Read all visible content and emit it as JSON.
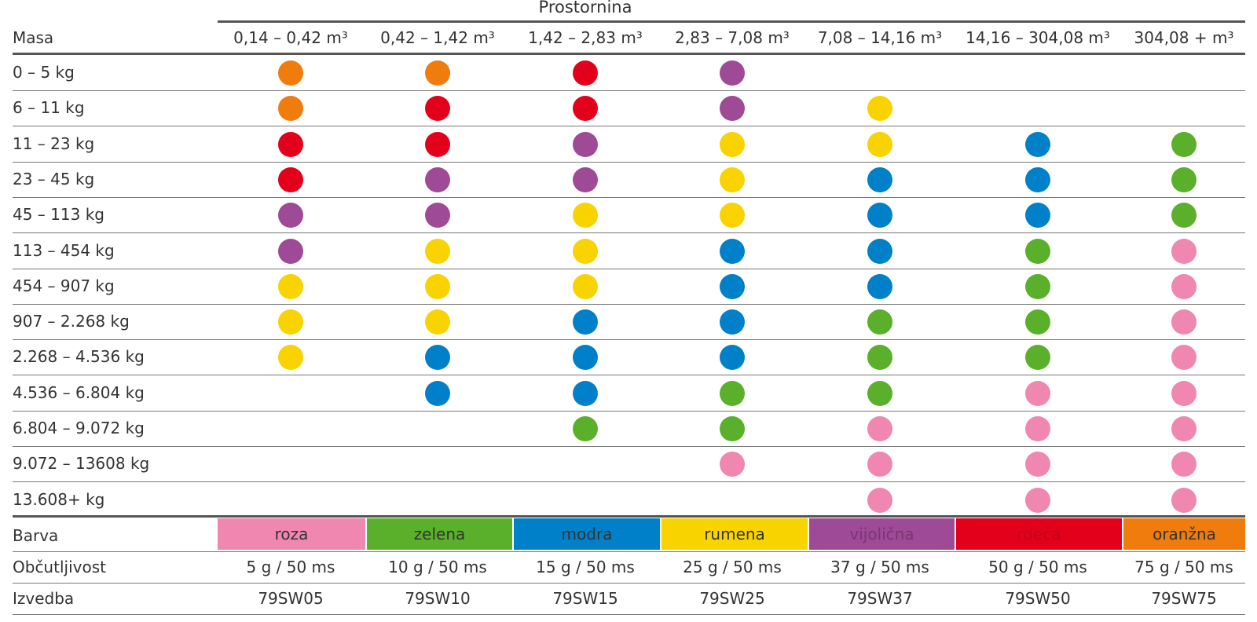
{
  "header": {
    "group_title": "Prostornina",
    "row_header": "Masa"
  },
  "columns": [
    "0,14 – 0,42 m³",
    "0,42 – 1,42 m³",
    "1,42 – 2,83 m³",
    "2,83 – 7,08 m³",
    "7,08 – 14,16 m³",
    "14,16 – 304,08 m³",
    "304,08 + m³"
  ],
  "rows": [
    {
      "label": "0 – 5 kg",
      "cells": [
        "O",
        "O",
        "R",
        "V",
        "",
        "",
        ""
      ]
    },
    {
      "label": "6 – 11 kg",
      "cells": [
        "O",
        "R",
        "R",
        "V",
        "Y",
        "",
        ""
      ]
    },
    {
      "label": "11 – 23 kg",
      "cells": [
        "R",
        "R",
        "V",
        "Y",
        "Y",
        "B",
        "G"
      ]
    },
    {
      "label": "23 – 45 kg",
      "cells": [
        "R",
        "V",
        "V",
        "Y",
        "B",
        "B",
        "G"
      ]
    },
    {
      "label": "45 – 113 kg",
      "cells": [
        "V",
        "V",
        "Y",
        "Y",
        "B",
        "B",
        "G"
      ]
    },
    {
      "label": "113 – 454 kg",
      "cells": [
        "V",
        "Y",
        "Y",
        "B",
        "B",
        "G",
        "P"
      ]
    },
    {
      "label": "454 – 907 kg",
      "cells": [
        "Y",
        "Y",
        "Y",
        "B",
        "B",
        "G",
        "P"
      ]
    },
    {
      "label": "907 – 2.268 kg",
      "cells": [
        "Y",
        "Y",
        "B",
        "B",
        "G",
        "G",
        "P"
      ]
    },
    {
      "label": "2.268 – 4.536 kg",
      "cells": [
        "Y",
        "B",
        "B",
        "B",
        "G",
        "G",
        "P"
      ]
    },
    {
      "label": "4.536 – 6.804 kg",
      "cells": [
        "",
        "B",
        "B",
        "G",
        "G",
        "P",
        "P"
      ]
    },
    {
      "label": "6.804 – 9.072 kg",
      "cells": [
        "",
        "",
        "G",
        "G",
        "P",
        "P",
        "P"
      ]
    },
    {
      "label": "9.072 – 13608 kg",
      "cells": [
        "",
        "",
        "",
        "P",
        "P",
        "P",
        "P"
      ]
    },
    {
      "label": "13.608+ kg",
      "cells": [
        "",
        "",
        "",
        "",
        "P",
        "P",
        "P"
      ]
    }
  ],
  "color_codes": {
    "O": "#f07c0e",
    "R": "#e3001b",
    "V": "#9e4a96",
    "Y": "#f8d300",
    "B": "#0080c8",
    "G": "#5ab02a",
    "P": "#ef87b1"
  },
  "footer": {
    "barva": {
      "label": "Barva",
      "items": [
        {
          "name": "roza",
          "color": "#ef87b1"
        },
        {
          "name": "zelena",
          "color": "#5ab02a"
        },
        {
          "name": "modra",
          "color": "#0080c8"
        },
        {
          "name": "rumena",
          "color": "#f8d300"
        },
        {
          "name": "vijolična",
          "color": "#9e4a96"
        },
        {
          "name": "rdeča",
          "color": "#e3001b"
        },
        {
          "name": "oranžna",
          "color": "#f07c0e"
        }
      ]
    },
    "obcutljivost": {
      "label": "Občutljivost",
      "values": [
        "5 g / 50 ms",
        "10 g / 50 ms",
        "15 g / 50 ms",
        "25 g / 50 ms",
        "37 g / 50 ms",
        "50 g / 50 ms",
        "75 g / 50 ms"
      ]
    },
    "izvedba": {
      "label": "Izvedba",
      "values": [
        "79SW05",
        "79SW10",
        "79SW15",
        "79SW25",
        "79SW37",
        "79SW50",
        "79SW75"
      ]
    }
  }
}
